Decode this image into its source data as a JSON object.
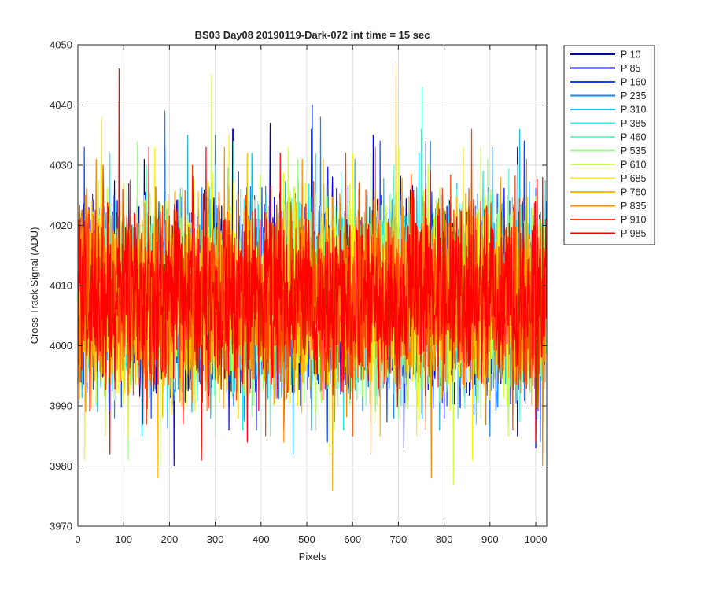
{
  "chart_data": {
    "type": "line",
    "title": "BS03 Day08 20190119-Dark-072 int time = 15 sec",
    "xlabel": "Pixels",
    "ylabel": "Cross Track Signal (ADU)",
    "xlim": [
      0,
      1024
    ],
    "ylim": [
      3970,
      4050
    ],
    "x_ticks": [
      "0",
      "100",
      "200",
      "300",
      "400",
      "500",
      "600",
      "700",
      "800",
      "900",
      "1000"
    ],
    "y_ticks": [
      "3970",
      "3980",
      "3990",
      "4000",
      "4010",
      "4020",
      "4030",
      "4040",
      "4050"
    ],
    "grid": true,
    "legend_position": "outside-top-right",
    "n_points": 1024,
    "signal_mean": 4008,
    "signal_std": 7.5,
    "series": [
      {
        "name": "P 10",
        "color": "#0000aa",
        "peaks": [
          [
            145,
            4031
          ],
          [
            340,
            4036
          ],
          [
            510,
            4036
          ],
          [
            760,
            4034
          ],
          [
            960,
            4033
          ]
        ],
        "troughs": [
          [
            180,
            3990
          ],
          [
            330,
            3990
          ],
          [
            712,
            3983
          ],
          [
            900,
            3988
          ],
          [
            1000,
            3983
          ]
        ]
      },
      {
        "name": "P 85",
        "color": "#0000ee",
        "peaks": [
          [
            190,
            4033
          ],
          [
            338,
            4036
          ],
          [
            420,
            4037
          ],
          [
            645,
            4035
          ],
          [
            975,
            4034
          ]
        ],
        "troughs": [
          [
            210,
            3980
          ],
          [
            330,
            3986
          ],
          [
            450,
            3986
          ],
          [
            800,
            3988
          ],
          [
            960,
            3985
          ]
        ]
      },
      {
        "name": "P 160",
        "color": "#1144ff",
        "peaks": [
          [
            14,
            4033
          ],
          [
            390,
            4035
          ],
          [
            512,
            4040
          ],
          [
            660,
            4034
          ],
          [
            975,
            4034
          ]
        ],
        "troughs": [
          [
            160,
            3988
          ],
          [
            390,
            3986
          ],
          [
            545,
            3984
          ],
          [
            830,
            3988
          ],
          [
            1010,
            3984
          ]
        ]
      },
      {
        "name": "P 235",
        "color": "#1188ff",
        "peaks": [
          [
            190,
            4039
          ],
          [
            300,
            4035
          ],
          [
            530,
            4038
          ],
          [
            770,
            4034
          ],
          [
            905,
            4033
          ]
        ],
        "troughs": [
          [
            80,
            3988
          ],
          [
            340,
            3990
          ],
          [
            470,
            3982
          ],
          [
            690,
            3988
          ],
          [
            900,
            3985
          ]
        ]
      },
      {
        "name": "P 310",
        "color": "#11bbee",
        "peaks": [
          [
            240,
            4035
          ],
          [
            380,
            4032
          ],
          [
            605,
            4031
          ],
          [
            745,
            4032
          ],
          [
            965,
            4036
          ]
        ],
        "troughs": [
          [
            140,
            3985
          ],
          [
            290,
            3988
          ],
          [
            510,
            3986
          ],
          [
            790,
            3986
          ],
          [
            940,
            3987
          ]
        ]
      },
      {
        "name": "P 385",
        "color": "#22eeee",
        "peaks": [
          [
            70,
            4032
          ],
          [
            300,
            4030
          ],
          [
            520,
            4032
          ],
          [
            750,
            4036
          ],
          [
            885,
            4029
          ]
        ],
        "troughs": [
          [
            110,
            3987
          ],
          [
            360,
            3986
          ],
          [
            580,
            3986
          ],
          [
            740,
            3987
          ],
          [
            870,
            3987
          ]
        ]
      },
      {
        "name": "P 460",
        "color": "#66ffcc",
        "peaks": [
          [
            150,
            4030
          ],
          [
            340,
            4034
          ],
          [
            690,
            4030
          ],
          [
            752,
            4043
          ],
          [
            960,
            4030
          ]
        ],
        "troughs": [
          [
            40,
            3990
          ],
          [
            200,
            3991
          ],
          [
            420,
            3985
          ],
          [
            650,
            3989
          ],
          [
            830,
            3988
          ]
        ]
      },
      {
        "name": "P 535",
        "color": "#99ff88",
        "peaks": [
          [
            130,
            4034
          ],
          [
            280,
            4030
          ],
          [
            480,
            4031
          ],
          [
            640,
            4032
          ],
          [
            895,
            4031
          ]
        ],
        "troughs": [
          [
            110,
            3981
          ],
          [
            300,
            3985
          ],
          [
            520,
            3986
          ],
          [
            700,
            3988
          ],
          [
            880,
            3988
          ]
        ]
      },
      {
        "name": "P 610",
        "color": "#ccff44",
        "peaks": [
          [
            50,
            4030
          ],
          [
            292,
            4045
          ],
          [
            460,
            4033
          ],
          [
            700,
            4033
          ],
          [
            880,
            4033
          ]
        ],
        "troughs": [
          [
            60,
            3985
          ],
          [
            180,
            3980
          ],
          [
            560,
            3986
          ],
          [
            820,
            3977
          ],
          [
            940,
            3985
          ]
        ]
      },
      {
        "name": "P 685",
        "color": "#ffee11",
        "peaks": [
          [
            52,
            4038
          ],
          [
            168,
            4033
          ],
          [
            330,
            4035
          ],
          [
            600,
            4032
          ],
          [
            842,
            4033
          ]
        ],
        "troughs": [
          [
            15,
            3981
          ],
          [
            110,
            3985
          ],
          [
            550,
            3982
          ],
          [
            740,
            3985
          ],
          [
            862,
            3981
          ]
        ]
      },
      {
        "name": "P 760",
        "color": "#ffbb00",
        "peaks": [
          [
            100,
            4027
          ],
          [
            370,
            4032
          ],
          [
            536,
            4031
          ],
          [
            695,
            4047
          ],
          [
            860,
            4030
          ]
        ],
        "troughs": [
          [
            175,
            3978
          ],
          [
            350,
            3988
          ],
          [
            556,
            3976
          ],
          [
            660,
            3985
          ],
          [
            890,
            3987
          ]
        ]
      },
      {
        "name": "P 835",
        "color": "#ff8800",
        "peaks": [
          [
            40,
            4031
          ],
          [
            320,
            4033
          ],
          [
            490,
            4031
          ],
          [
            650,
            4033
          ],
          [
            980,
            4031
          ]
        ],
        "troughs": [
          [
            270,
            3983
          ],
          [
            450,
            3984
          ],
          [
            640,
            3982
          ],
          [
            772,
            3978
          ],
          [
            1015,
            3980
          ]
        ]
      },
      {
        "name": "P 910",
        "color": "#ff4400",
        "peaks": [
          [
            55,
            4030
          ],
          [
            250,
            4030
          ],
          [
            410,
            4034
          ],
          [
            585,
            4032
          ],
          [
            860,
            4036
          ]
        ],
        "troughs": [
          [
            150,
            3987
          ],
          [
            410,
            3985
          ],
          [
            600,
            3985
          ],
          [
            760,
            3986
          ],
          [
            950,
            3986
          ]
        ]
      },
      {
        "name": "P 985",
        "color": "#ff0000",
        "peaks": [
          [
            90,
            4046
          ],
          [
            155,
            4033
          ],
          [
            280,
            4033
          ],
          [
            442,
            4032
          ],
          [
            770,
            4029
          ]
        ],
        "troughs": [
          [
            70,
            3982
          ],
          [
            230,
            3987
          ],
          [
            270,
            3981
          ],
          [
            370,
            3984
          ],
          [
            1000,
            3984
          ]
        ]
      }
    ]
  }
}
